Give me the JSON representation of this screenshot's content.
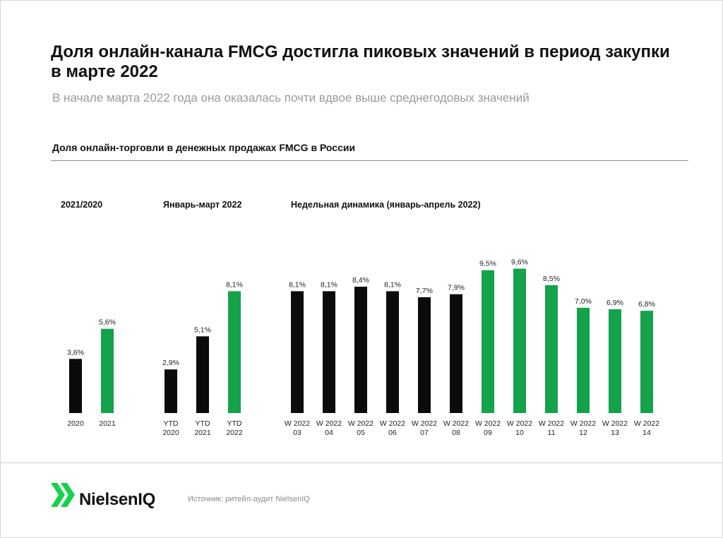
{
  "header": {
    "title": "Доля онлайн-канала FMCG достигла пиковых значений в период закупки в марте 2022",
    "subtitle": "В начале марта 2022 года она оказалась почти вдвое выше среднегодовых значений",
    "chart_title": "Доля онлайн-торговли в денежных продажах FMCG в России"
  },
  "colors": {
    "dark": "#0b0b0b",
    "green": "#14a24a"
  },
  "chart_data": [
    {
      "type": "bar",
      "title": "2021/2020",
      "categories": [
        [
          "2020"
        ],
        [
          "2021"
        ]
      ],
      "values": [
        3.6,
        5.6
      ],
      "value_labels": [
        "3,6%",
        "5,6%"
      ],
      "colors": [
        "dark",
        "green"
      ],
      "unit": "%"
    },
    {
      "type": "bar",
      "title": "Январь-март 2022",
      "categories": [
        [
          "YTD",
          "2020"
        ],
        [
          "YTD",
          "2021"
        ],
        [
          "YTD",
          "2022"
        ]
      ],
      "values": [
        2.9,
        5.1,
        8.1
      ],
      "value_labels": [
        "2,9%",
        "5,1%",
        "8,1%"
      ],
      "colors": [
        "dark",
        "dark",
        "green"
      ],
      "unit": "%"
    },
    {
      "type": "bar",
      "title": "Недельная динамика (январь-апрель 2022)",
      "categories": [
        [
          "W 2022",
          "03"
        ],
        [
          "W 2022",
          "04"
        ],
        [
          "W 2022",
          "05"
        ],
        [
          "W 2022",
          "06"
        ],
        [
          "W 2022",
          "07"
        ],
        [
          "W 2022",
          "08"
        ],
        [
          "W 2022",
          "09"
        ],
        [
          "W 2022",
          "10"
        ],
        [
          "W 2022",
          "11"
        ],
        [
          "W 2022",
          "12"
        ],
        [
          "W 2022",
          "13"
        ],
        [
          "W 2022",
          "14"
        ]
      ],
      "values": [
        8.1,
        8.1,
        8.4,
        8.1,
        7.7,
        7.9,
        9.5,
        9.6,
        8.5,
        7.0,
        6.9,
        6.8
      ],
      "value_labels": [
        "8,1%",
        "8,1%",
        "8,4%",
        "8,1%",
        "7,7%",
        "7,9%",
        "9,5%",
        "9,6%",
        "8,5%",
        "7,0%",
        "6,9%",
        "6,8%"
      ],
      "colors": [
        "dark",
        "dark",
        "dark",
        "dark",
        "dark",
        "dark",
        "green",
        "green",
        "green",
        "green",
        "green",
        "green"
      ],
      "unit": "%"
    }
  ],
  "footer": {
    "brand": "NielsenIQ",
    "logo_icon": "nielseniq-chevron-logo-icon",
    "source": "Источник: ритейл-аудит NielsenIQ"
  }
}
